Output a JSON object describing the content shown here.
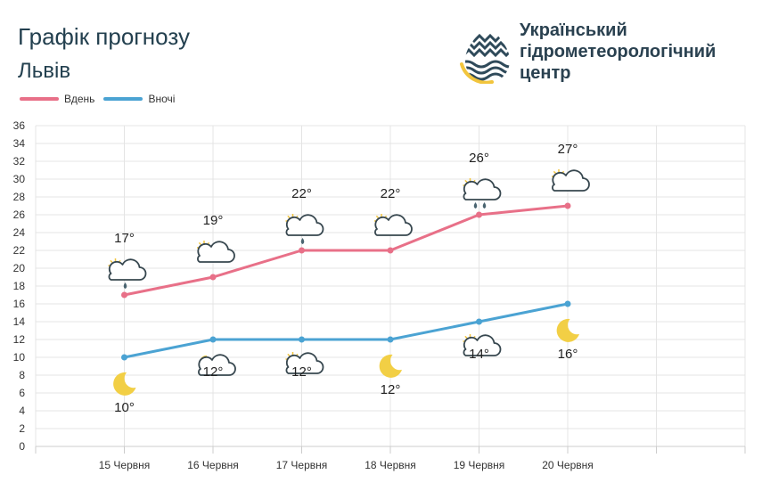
{
  "header": {
    "title": "Графік прогнозу",
    "city": "Львів",
    "org_lines": [
      "Український",
      "гідрометеорологічний",
      "центр"
    ]
  },
  "colors": {
    "day": "#e87088",
    "night": "#4ba3d3",
    "grid": "#e4e4e4",
    "text": "#333333",
    "sun": "#f2c53d",
    "moon": "#f2cf45",
    "cloud": "#37474f"
  },
  "chart_data": {
    "type": "line",
    "categories": [
      "15 Червня",
      "16 Червня",
      "17 Червня",
      "18 Червня",
      "19 Червня",
      "20 Червня"
    ],
    "ylim": [
      0,
      36
    ],
    "ytick_step": 2,
    "grid": true,
    "legend_position": "top-left",
    "series": [
      {
        "name": "Вдень",
        "values": [
          17,
          19,
          22,
          22,
          26,
          27
        ],
        "labels": [
          "17°",
          "19°",
          "22°",
          "22°",
          "26°",
          "27°"
        ],
        "icons": [
          "sun-cloud-rain-icon",
          "sun-cloud-icon",
          "sun-cloud-rain-icon",
          "sun-cloud-icon",
          "sun-cloud-heavy-rain-icon",
          "sun-cloud-icon"
        ]
      },
      {
        "name": "Вночі",
        "values": [
          10,
          12,
          12,
          12,
          14,
          16
        ],
        "labels": [
          "10°",
          "12°",
          "12°",
          "12°",
          "14°",
          "16°"
        ],
        "icons": [
          "moon-icon",
          "moon-cloud-icon",
          "sun-cloud-icon",
          "moon-icon",
          "sun-cloud-icon",
          "moon-icon"
        ]
      }
    ]
  }
}
